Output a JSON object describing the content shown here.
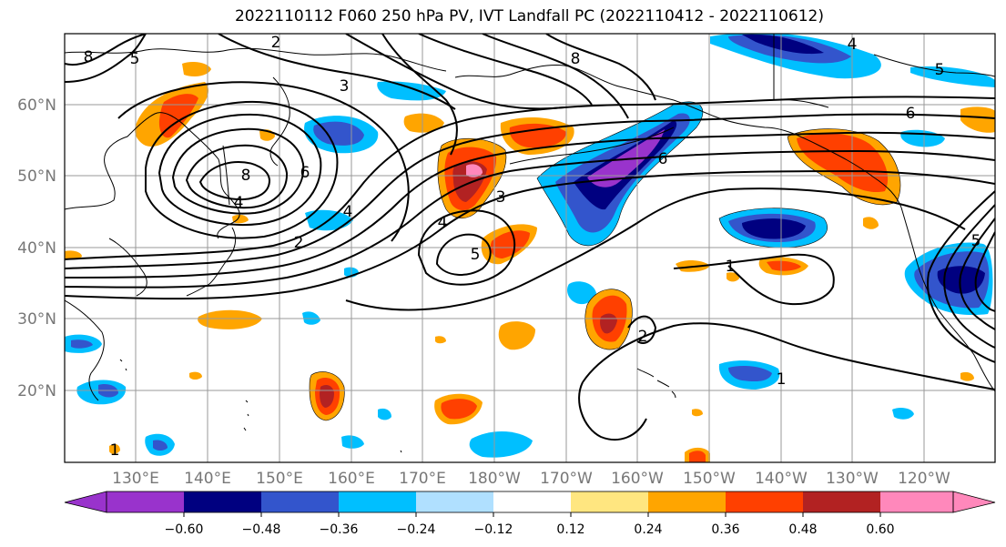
{
  "title": "2022110112 F060 250 hPa PV, IVT Landfall PC (2022110412 - 2022110612)",
  "lat_labels": [
    "60°N",
    "50°N",
    "40°N",
    "30°N",
    "20°N"
  ],
  "lon_labels": [
    "130°E",
    "140°E",
    "150°E",
    "160°E",
    "170°E",
    "180°W",
    "170°W",
    "160°W",
    "150°W",
    "140°W",
    "130°W",
    "120°W"
  ],
  "colorbar": {
    "ticks": [
      "−0.60",
      "−0.48",
      "−0.36",
      "−0.24",
      "−0.12",
      "0.12",
      "0.24",
      "0.36",
      "0.48",
      "0.60"
    ],
    "colors": [
      "#9933cc",
      "#000080",
      "#3355cc",
      "#00bfff",
      "#b0e0ff",
      "#ffffff",
      "#ffe680",
      "#ffa500",
      "#ff4000",
      "#b22222",
      "#ff88bb"
    ]
  },
  "contour_labels": [
    "2",
    "3",
    "8",
    "5",
    "8",
    "6",
    "4",
    "2",
    "4",
    "8",
    "6",
    "3",
    "5",
    "4",
    "1",
    "1",
    "2",
    "1",
    "4",
    "5",
    "6",
    "5"
  ],
  "colors": {
    "contour": "#000000",
    "grid": "#999999",
    "coast": "#000000"
  }
}
